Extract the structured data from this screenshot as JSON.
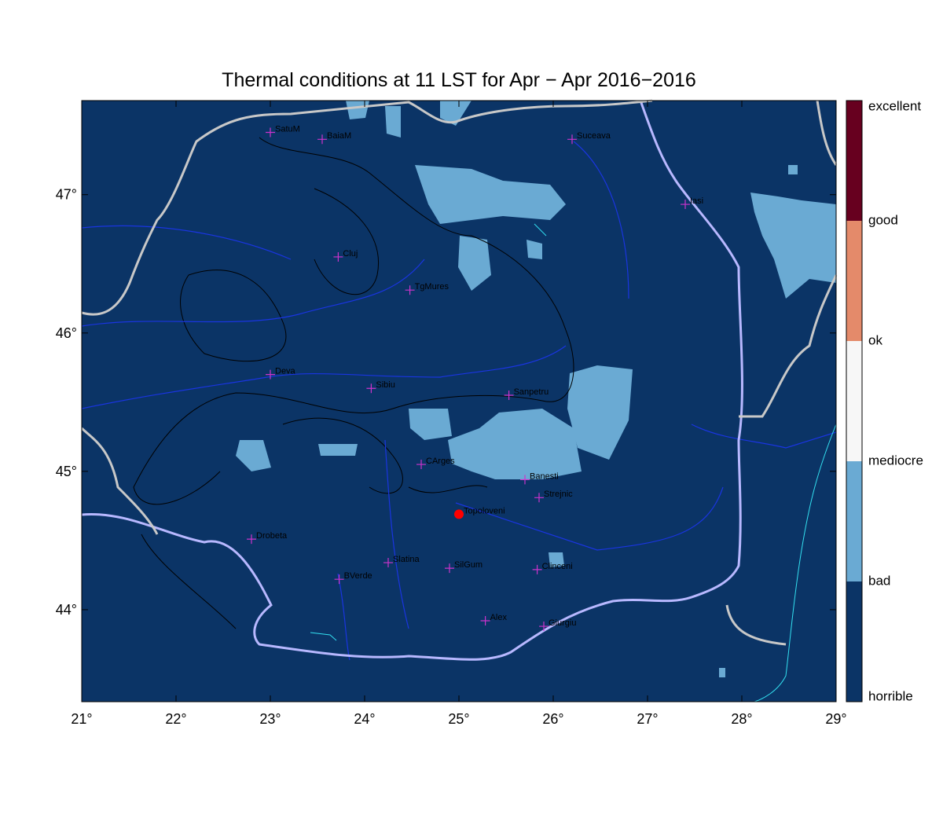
{
  "chart_data": {
    "type": "map",
    "title": "Thermal conditions at 11 LST for Apr − Apr  2016−2016",
    "xlim": [
      21,
      29
    ],
    "ylim": [
      43.335,
      47.68
    ],
    "xticks": [
      {
        "value": 21,
        "label": "21°"
      },
      {
        "value": 22,
        "label": "22°"
      },
      {
        "value": 23,
        "label": "23°"
      },
      {
        "value": 24,
        "label": "24°"
      },
      {
        "value": 25,
        "label": "25°"
      },
      {
        "value": 26,
        "label": "26°"
      },
      {
        "value": 27,
        "label": "27°"
      },
      {
        "value": 28,
        "label": "28°"
      },
      {
        "value": 29,
        "label": "29°"
      }
    ],
    "yticks": [
      {
        "value": 44,
        "label": "44°"
      },
      {
        "value": 45,
        "label": "45°"
      },
      {
        "value": 46,
        "label": "46°"
      },
      {
        "value": 47,
        "label": "47°"
      }
    ],
    "marker_color": "#cc33cc",
    "highlight_color": "#ff0000",
    "points": [
      {
        "name": "SatuM",
        "lon": 23.0,
        "lat": 47.45,
        "marker": "cross"
      },
      {
        "name": "BaiaM",
        "lon": 23.55,
        "lat": 47.4,
        "marker": "cross"
      },
      {
        "name": "Suceava",
        "lon": 26.2,
        "lat": 47.4,
        "marker": "cross"
      },
      {
        "name": "Iasi",
        "lon": 27.4,
        "lat": 46.93,
        "marker": "cross"
      },
      {
        "name": "Cluj",
        "lon": 23.72,
        "lat": 46.55,
        "marker": "cross"
      },
      {
        "name": "TgMures",
        "lon": 24.48,
        "lat": 46.31,
        "marker": "cross"
      },
      {
        "name": "Deva",
        "lon": 23.0,
        "lat": 45.7,
        "marker": "cross"
      },
      {
        "name": "Sibiu",
        "lon": 24.07,
        "lat": 45.6,
        "marker": "cross"
      },
      {
        "name": "Sanpetru",
        "lon": 25.53,
        "lat": 45.55,
        "marker": "cross"
      },
      {
        "name": "CArges",
        "lon": 24.6,
        "lat": 45.05,
        "marker": "cross"
      },
      {
        "name": "Banesti",
        "lon": 25.7,
        "lat": 44.94,
        "marker": "cross"
      },
      {
        "name": "Strejnic",
        "lon": 25.85,
        "lat": 44.81,
        "marker": "cross"
      },
      {
        "name": "Topoloveni",
        "lon": 25.0,
        "lat": 44.69,
        "marker": "dot"
      },
      {
        "name": "Drobeta",
        "lon": 22.8,
        "lat": 44.51,
        "marker": "cross"
      },
      {
        "name": "Slatina",
        "lon": 24.25,
        "lat": 44.34,
        "marker": "cross"
      },
      {
        "name": "SilGum",
        "lon": 24.9,
        "lat": 44.3,
        "marker": "cross"
      },
      {
        "name": "Clinceni",
        "lon": 25.83,
        "lat": 44.29,
        "marker": "cross"
      },
      {
        "name": "BVerde",
        "lon": 23.73,
        "lat": 44.22,
        "marker": "cross"
      },
      {
        "name": "Alex",
        "lon": 25.28,
        "lat": 43.92,
        "marker": "cross"
      },
      {
        "name": "Giurgiu",
        "lon": 25.9,
        "lat": 43.88,
        "marker": "cross"
      }
    ],
    "colorbar": {
      "labels": [
        "horrible",
        "bad",
        "mediocre",
        "ok",
        "good",
        "excellent"
      ],
      "colors": [
        "#0b3466",
        "#6aaad3",
        "#f7f7f7",
        "#e48a6a",
        "#67001f"
      ]
    }
  }
}
